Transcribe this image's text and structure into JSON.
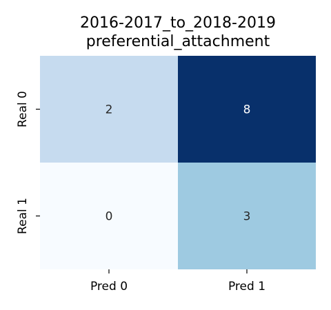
{
  "chart_data": {
    "type": "heatmap",
    "title_lines": [
      "2016-2017_to_2018-2019",
      "preferential_attachment"
    ],
    "x_tick_labels": [
      "Pred 0",
      "Pred 1"
    ],
    "y_tick_labels": [
      "Real 0",
      "Real 1"
    ],
    "values": [
      [
        2,
        8
      ],
      [
        0,
        3
      ]
    ],
    "value_range": [
      0,
      8
    ],
    "colormap": "Blues",
    "colorbar": false,
    "grid": false
  }
}
